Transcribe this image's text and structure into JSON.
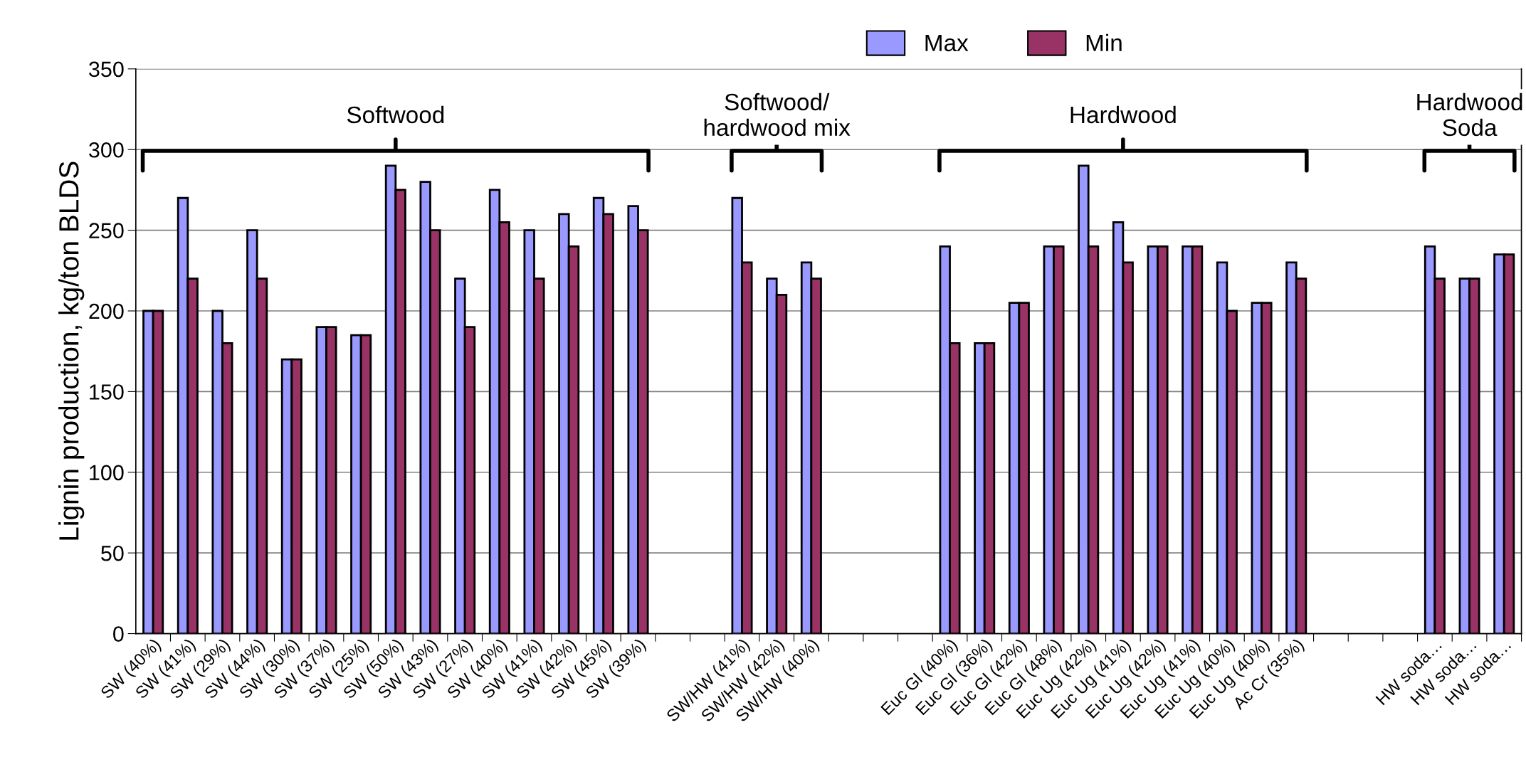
{
  "chart_data": {
    "type": "bar",
    "ylabel": "Lignin production, kg/ton BLDS",
    "categories": [
      "SW (40%)",
      "SW (41%)",
      "SW (29%)",
      "SW (44%)",
      "SW (30%)",
      "SW (37%)",
      "SW (25%)",
      "SW (50%)",
      "SW (43%)",
      "SW (27%)",
      "SW (40%)",
      "SW (41%)",
      "SW (42%)",
      "SW (45%)",
      "SW (39%)",
      null,
      null,
      "SW/HW (41%)",
      "SW/HW (42%)",
      "SW/HW (40%)",
      null,
      null,
      null,
      "Euc Gl (40%)",
      "Euc Gl (36%)",
      "Euc Gl (42%)",
      "Euc Gl (48%)",
      "Euc Ug (42%)",
      "Euc Ug (41%)",
      "Euc Ug (42%)",
      "Euc Ug (41%)",
      "Euc Ug (40%)",
      "Euc Ug (40%)",
      "Ac Cr (35%)",
      null,
      null,
      null,
      "HW soda…",
      "HW soda…",
      "HW soda…"
    ],
    "series": [
      {
        "name": "Max",
        "color": "#9999ff",
        "values": [
          200,
          270,
          200,
          250,
          170,
          190,
          185,
          290,
          280,
          220,
          275,
          250,
          260,
          270,
          265,
          null,
          null,
          270,
          220,
          230,
          null,
          null,
          null,
          240,
          180,
          205,
          240,
          290,
          255,
          240,
          240,
          230,
          205,
          230,
          null,
          null,
          null,
          240,
          220,
          235
        ]
      },
      {
        "name": "Min",
        "color": "#993366",
        "values": [
          200,
          220,
          180,
          220,
          170,
          190,
          185,
          275,
          250,
          190,
          255,
          220,
          240,
          260,
          250,
          null,
          null,
          230,
          210,
          220,
          null,
          null,
          null,
          180,
          180,
          205,
          240,
          240,
          230,
          240,
          240,
          200,
          205,
          220,
          null,
          null,
          null,
          220,
          220,
          235
        ]
      }
    ],
    "ylim": [
      0,
      350
    ],
    "yticks": [
      0,
      50,
      100,
      150,
      200,
      250,
      300,
      350
    ],
    "grid": "y",
    "legend": "top",
    "annotations": [
      "Softwood",
      "Softwood/\nhardwood mix",
      "Hardwood",
      "Hardwood\nSoda"
    ]
  }
}
